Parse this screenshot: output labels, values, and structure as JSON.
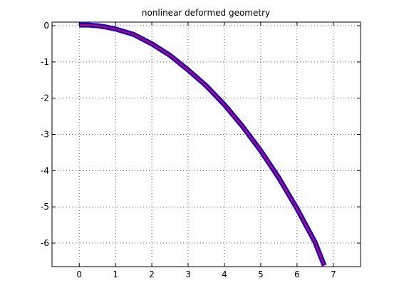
{
  "chart_data": {
    "type": "line",
    "title": "nonlinear deformed geometry",
    "xlabel": "",
    "ylabel": "",
    "xlim": [
      -0.75,
      7.75
    ],
    "ylim": [
      -6.65,
      0.1
    ],
    "xticks": [
      0,
      1,
      2,
      3,
      4,
      5,
      6,
      7
    ],
    "yticks": [
      0,
      -1,
      -2,
      -3,
      -4,
      -5,
      -6
    ],
    "grid": true,
    "grid_style": "dotted",
    "series": [
      {
        "x": [
          0,
          0.25,
          0.5,
          0.75,
          1,
          1.5,
          2,
          2.5,
          3,
          3.5,
          4,
          4.5,
          5,
          5.5,
          6,
          6.5,
          6.75
        ],
        "y": [
          0.02,
          0.02,
          0.0,
          -0.04,
          -0.09,
          -0.24,
          -0.5,
          -0.82,
          -1.22,
          -1.66,
          -2.18,
          -2.78,
          -3.45,
          -4.2,
          -5.05,
          -5.98,
          -6.62
        ],
        "color": "#ff0000",
        "outline_color": "#0000ff"
      }
    ]
  }
}
